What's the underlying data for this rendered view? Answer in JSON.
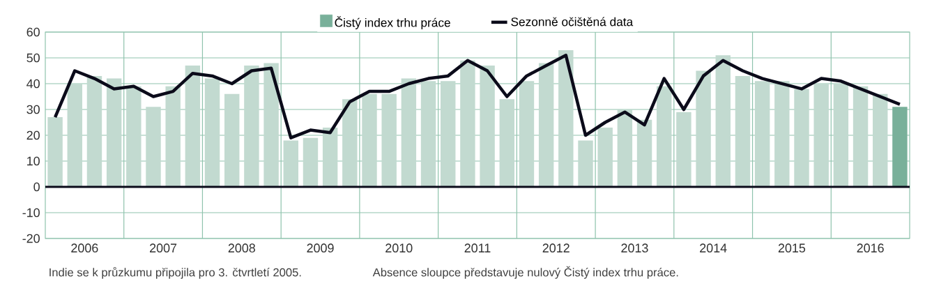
{
  "chart_data": {
    "type": "bar",
    "x": [
      2006.125,
      2006.375,
      2006.625,
      2006.875,
      2007.125,
      2007.375,
      2007.625,
      2007.875,
      2008.125,
      2008.375,
      2008.625,
      2008.875,
      2009.125,
      2009.375,
      2009.625,
      2009.875,
      2010.125,
      2010.375,
      2010.625,
      2010.875,
      2011.125,
      2011.375,
      2011.625,
      2011.875,
      2012.125,
      2012.375,
      2012.625,
      2012.875,
      2013.125,
      2013.375,
      2013.625,
      2013.875,
      2014.125,
      2014.375,
      2014.625,
      2014.875,
      2015.125,
      2015.375,
      2015.625,
      2015.875,
      2016.125,
      2016.375,
      2016.625,
      2016.875
    ],
    "series": [
      {
        "name": "Čistý index trhu práce",
        "color": "#79b09a",
        "colors": [
          "#c2dad0",
          "#c2dad0",
          "#c2dad0",
          "#c2dad0",
          "#c2dad0",
          "#c2dad0",
          "#c2dad0",
          "#c2dad0",
          "#c2dad0",
          "#c2dad0",
          "#c2dad0",
          "#c2dad0",
          "#c2dad0",
          "#c2dad0",
          "#c2dad0",
          "#c2dad0",
          "#c2dad0",
          "#c2dad0",
          "#c2dad0",
          "#c2dad0",
          "#c2dad0",
          "#c2dad0",
          "#c2dad0",
          "#c2dad0",
          "#c2dad0",
          "#c2dad0",
          "#c2dad0",
          "#c2dad0",
          "#c2dad0",
          "#c2dad0",
          "#c2dad0",
          "#c2dad0",
          "#c2dad0",
          "#c2dad0",
          "#c2dad0",
          "#c2dad0",
          "#c2dad0",
          "#c2dad0",
          "#c2dad0",
          "#c2dad0",
          "#c2dad0",
          "#c2dad0",
          "#c2dad0",
          "#79b09a"
        ],
        "values": [
          27,
          40,
          43,
          42,
          39,
          31,
          39,
          47,
          42,
          36,
          47,
          48,
          18,
          19,
          23,
          34,
          36,
          36,
          42,
          41,
          41,
          49,
          47,
          34,
          41,
          48,
          53,
          18,
          23,
          30,
          26,
          39,
          29,
          45,
          51,
          43,
          41,
          41,
          38,
          40,
          40,
          39,
          36,
          31
        ]
      },
      {
        "name": "Sezonně očištěná data",
        "type": "line",
        "color": "#0b0b1a",
        "values": [
          27,
          45,
          42,
          38,
          39,
          35,
          37,
          44,
          43,
          40,
          45,
          46,
          19,
          22,
          21,
          33,
          37,
          37,
          40,
          42,
          43,
          49,
          45,
          35,
          43,
          47,
          51,
          20,
          25,
          29,
          24,
          42,
          30,
          43,
          49,
          45,
          42,
          40,
          38,
          42,
          41,
          38,
          35,
          32
        ]
      }
    ],
    "xlim": [
      2006,
      2017
    ],
    "xticks": [
      {
        "value": 2007,
        "label": null
      },
      {
        "value": 2008,
        "label": null
      },
      {
        "value": 2009,
        "label": null
      },
      {
        "value": 2010,
        "label": null
      },
      {
        "value": 2011,
        "label": null
      },
      {
        "value": 2012,
        "label": null
      },
      {
        "value": 2013,
        "label": null
      },
      {
        "value": 2014,
        "label": null
      },
      {
        "value": 2015,
        "label": null
      },
      {
        "value": 2016,
        "label": null
      },
      {
        "value": 2006.5,
        "label": "2006"
      },
      {
        "value": 2007.5,
        "label": "2007"
      },
      {
        "value": 2008.5,
        "label": "2008"
      },
      {
        "value": 2009.5,
        "label": "2009"
      },
      {
        "value": 2010.5,
        "label": "2010"
      },
      {
        "value": 2011.5,
        "label": "2011"
      },
      {
        "value": 2012.5,
        "label": "2012"
      },
      {
        "value": 2013.5,
        "label": "2013"
      },
      {
        "value": 2014.5,
        "label": "2014"
      },
      {
        "value": 2015.5,
        "label": "2015"
      },
      {
        "value": 2016.5,
        "label": "2016"
      }
    ],
    "ylim": [
      -20,
      60
    ],
    "yticks": [
      -20,
      -10,
      0,
      10,
      20,
      30,
      40,
      50,
      60
    ],
    "grid": true,
    "legend": "top",
    "ref_lines": [
      {
        "axis": "y",
        "value": 0,
        "color": "#0b0b1a"
      }
    ],
    "annotations": [
      "Indie se k průzkumu připojila pro 3. čtvrtletí 2005.",
      "Absence sloupce představuje nulový Čistý index trhu práce."
    ]
  }
}
